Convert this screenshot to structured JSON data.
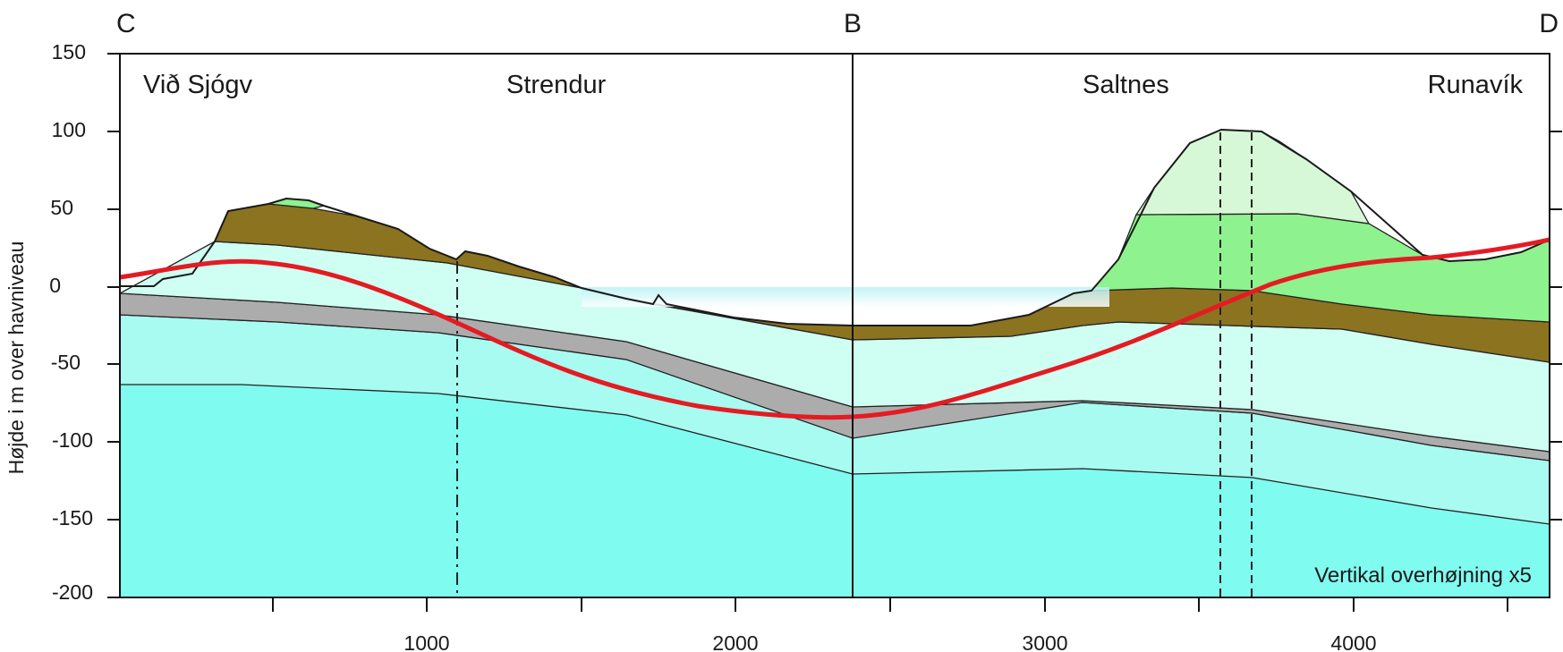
{
  "section_points": {
    "left": "C",
    "middle": "B",
    "right": "D"
  },
  "place_names": [
    "Við Sjógv",
    "Strendur",
    "Saltnes",
    "Runavík"
  ],
  "y_axis": {
    "label": "Højde i m over havniveau",
    "ticks": [
      "150",
      "100",
      "50",
      "0",
      "-50",
      "-100",
      "-150",
      "-200"
    ]
  },
  "x_axis": {
    "ticks": [
      "1000",
      "2000",
      "3000",
      "4000"
    ]
  },
  "note": "Vertikal overhøjning x5",
  "colors": {
    "deep_layer": "#80fbf0",
    "mid_layer": "#a8fbf0",
    "grey_layer": "#acacac",
    "upper_layer": "#cffef2",
    "brown_layer": "#8b7320",
    "green_layer": "#8ef28e",
    "light_green_layer": "#d6f8d6",
    "sea": "#c8f4f6",
    "red_curve": "#e41b23"
  }
}
